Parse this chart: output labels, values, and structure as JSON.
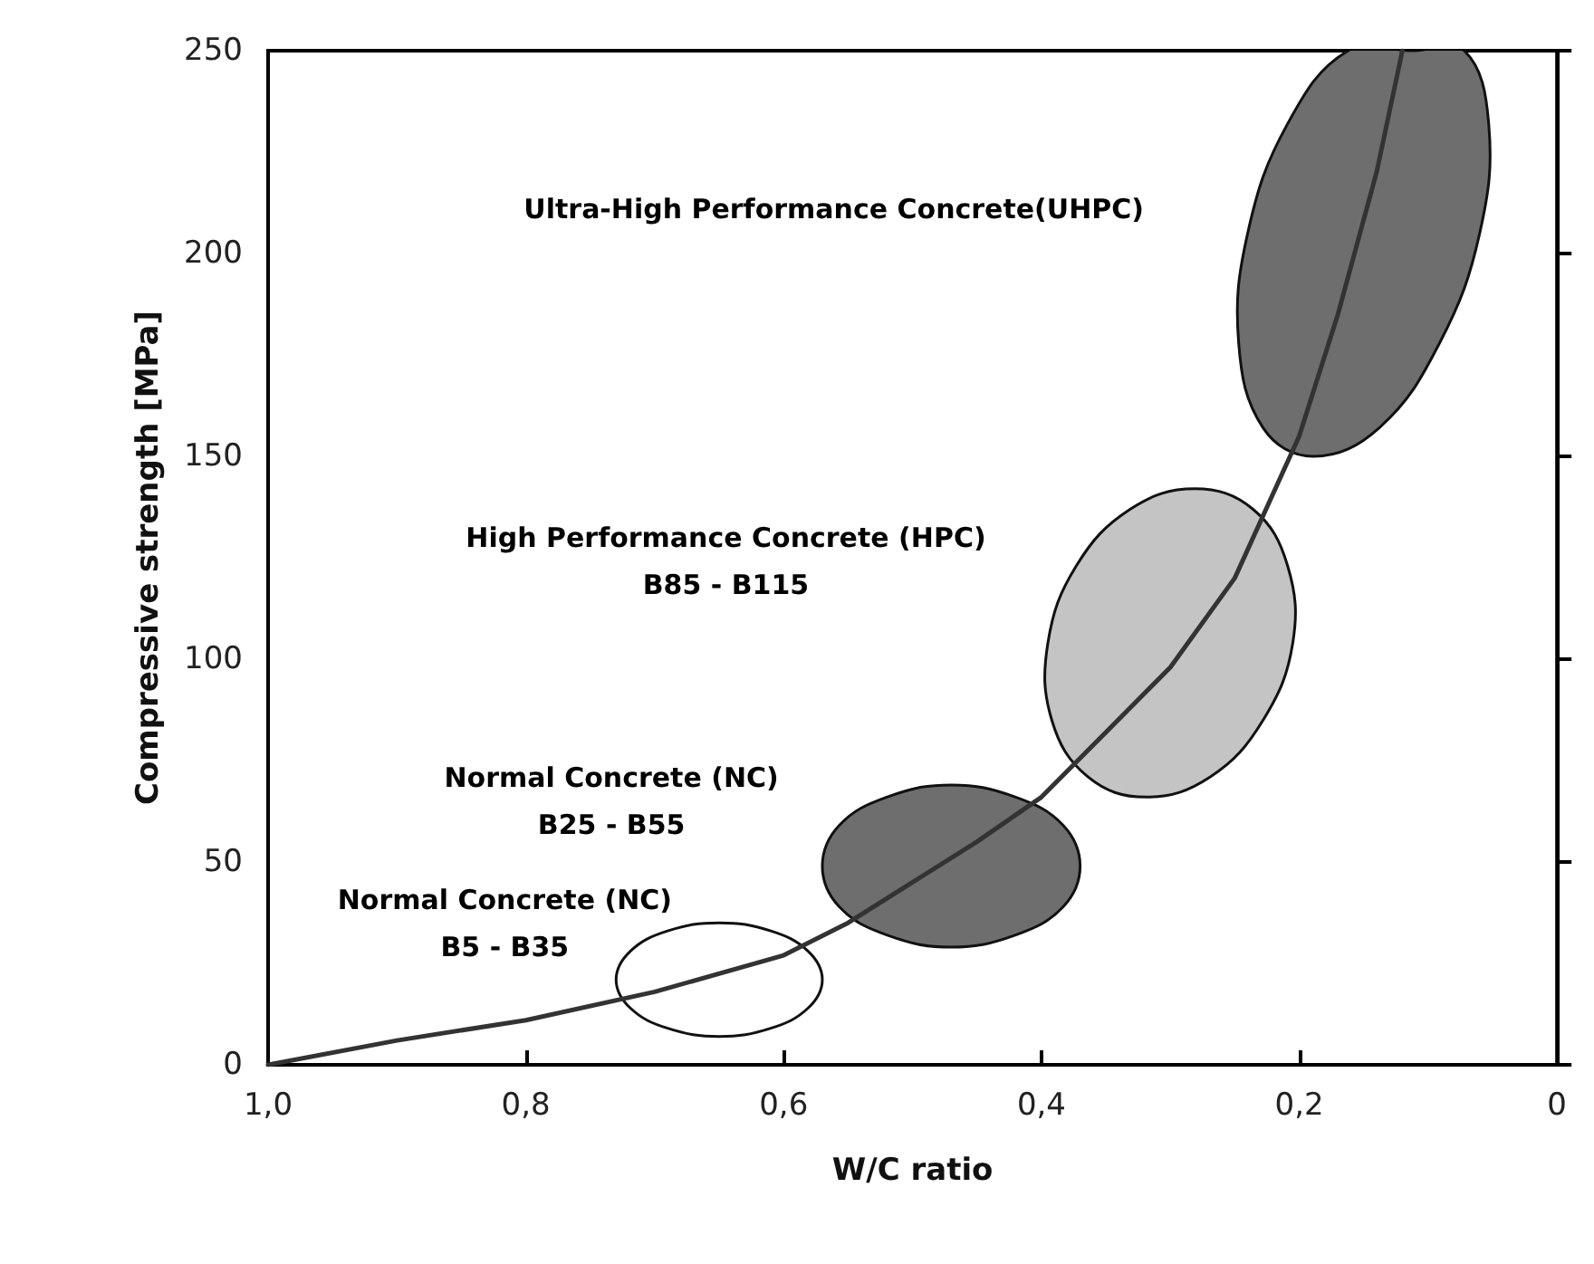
{
  "chart_data": {
    "type": "line",
    "xlabel": "W/C ratio",
    "ylabel": "Compressive strength [MPa]",
    "xlim": [
      1,
      0
    ],
    "ylim": [
      0,
      250
    ],
    "xticks": [
      {
        "value": 1,
        "label": "1,0"
      },
      {
        "value": 0.8,
        "label": "0,8"
      },
      {
        "value": 0.6,
        "label": "0,6"
      },
      {
        "value": 0.4,
        "label": "0,4"
      },
      {
        "value": 0.2,
        "label": "0,2"
      },
      {
        "value": 0,
        "label": "0"
      }
    ],
    "yticks": [
      0,
      50,
      100,
      150,
      200,
      250
    ],
    "grid": false,
    "marker": "none",
    "line_style": "solid",
    "series": [
      {
        "type": "area",
        "color": "#ffffff",
        "x": [
          0.73,
          0.719,
          0.69,
          0.65,
          0.61,
          0.581,
          0.57,
          0.581,
          0.61,
          0.65,
          0.69,
          0.719
        ],
        "values": [
          21,
          28,
          33,
          35,
          33,
          28,
          21,
          14,
          9,
          7,
          9,
          14
        ]
      },
      {
        "type": "area",
        "color": "#6e6e6e",
        "x": [
          0.57,
          0.557,
          0.52,
          0.47,
          0.42,
          0.383,
          0.37,
          0.383,
          0.42,
          0.47,
          0.52,
          0.557
        ],
        "values": [
          49,
          59,
          66,
          69,
          66,
          59,
          49,
          39,
          32,
          29,
          32,
          39
        ]
      },
      {
        "type": "area",
        "color": "#c4c4c4",
        "x": [
          0.395,
          0.373,
          0.331,
          0.281,
          0.236,
          0.209,
          0.205,
          0.228,
          0.269,
          0.319,
          0.364,
          0.392
        ],
        "values": [
          104,
          123,
          137,
          142,
          137,
          123,
          104,
          85,
          71,
          66,
          71,
          85
        ]
      },
      {
        "type": "area",
        "color": "#6e6e6e",
        "x": [
          0.24,
          0.209,
          0.162,
          0.112,
          0.072,
          0.053,
          0.06,
          0.091,
          0.138,
          0.189,
          0.228,
          0.247
        ],
        "values": [
          205,
          232,
          250,
          250,
          250,
          232,
          205,
          178,
          157,
          150,
          157,
          178
        ]
      },
      {
        "color": "#333333",
        "x": [
          1,
          0.9,
          0.8,
          0.7,
          0.6,
          0.55,
          0.5,
          0.45,
          0.4,
          0.35,
          0.3,
          0.25,
          0.2,
          0.17,
          0.14,
          0.12
        ],
        "values": [
          0,
          6,
          11,
          18,
          27,
          35,
          45,
          55,
          66,
          82,
          98,
          120,
          155,
          185,
          220,
          250
        ]
      }
    ],
    "annotations": [
      "Ultra-High Performance Concrete(UHPC)",
      "High Performance Concrete (HPC)\nB85 - B115",
      "Normal Concrete (NC)\nB25 - B55",
      "Normal Concrete (NC)\nB5 - B35"
    ]
  }
}
